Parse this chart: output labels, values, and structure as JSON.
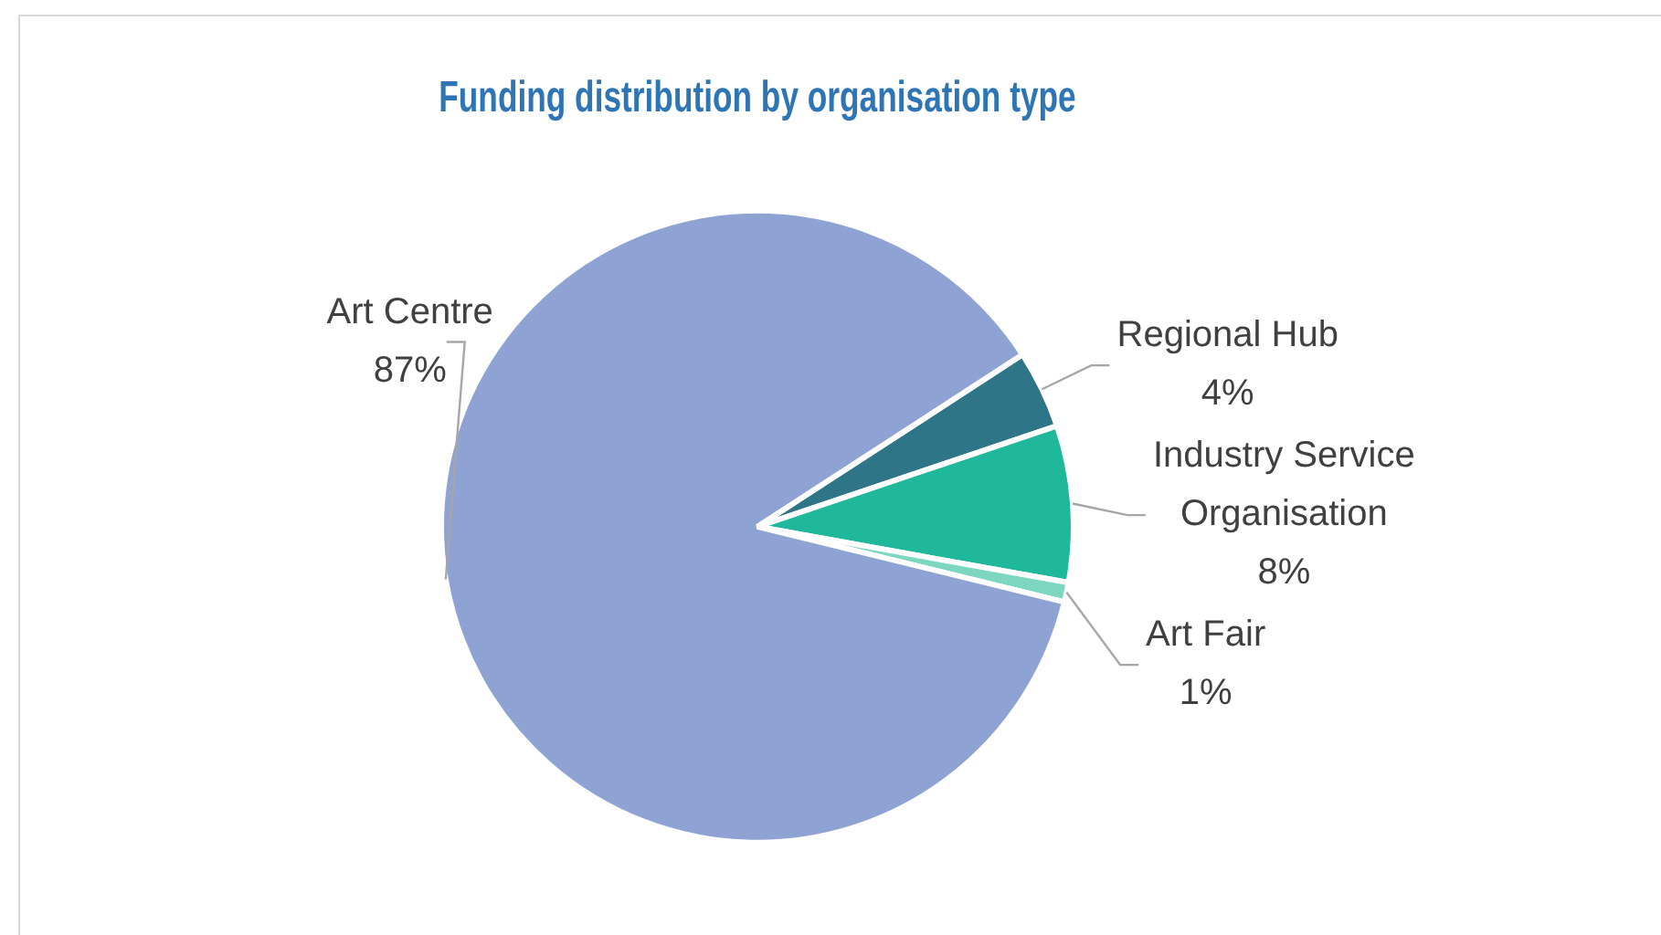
{
  "chart_data": {
    "type": "pie",
    "title": "Funding distribution by organisation type",
    "categories": [
      "Regional Hub",
      "Industry Service Organisation",
      "Art Fair",
      "Art Centre"
    ],
    "values": [
      4,
      8,
      1,
      87
    ],
    "value_labels": [
      "4%",
      "8%",
      "1%",
      "87%"
    ],
    "colors": [
      "#2e7587",
      "#1fb89a",
      "#7dd6c0",
      "#8fa2d4"
    ],
    "legend": false
  }
}
